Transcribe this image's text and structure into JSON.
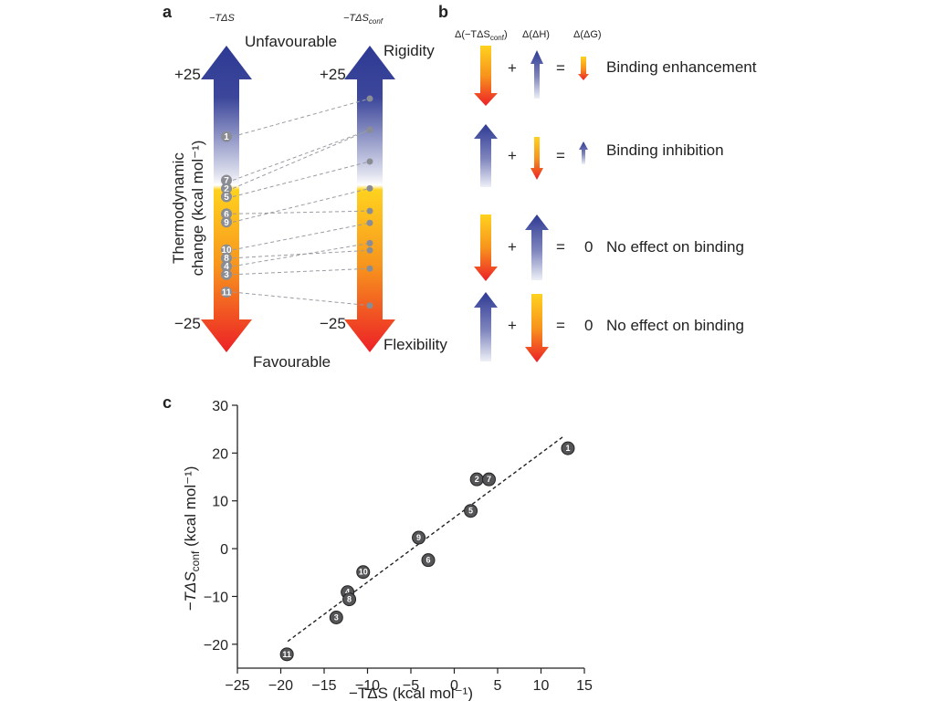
{
  "panel_a": {
    "letter": "a",
    "col1_header": "−TΔS",
    "col2_header": "−TΔS",
    "col2_header_sub": "conf",
    "unfavourable": "Unfavourable",
    "favourable": "Favourable",
    "rigidity": "Rigidity",
    "flexibility": "Flexibility",
    "plus25": "+25",
    "minus25": "−25",
    "ylabel_line1": "Thermodynamic",
    "ylabel_line2": "change (kcal mol⁻¹)",
    "markers": [
      {
        "label": "1",
        "tds": 13.1,
        "tds_conf": 21.0
      },
      {
        "label": "7",
        "tds": 4.0,
        "tds_conf": 14.5
      },
      {
        "label": "2",
        "tds": 2.6,
        "tds_conf": 14.5
      },
      {
        "label": "5",
        "tds": 1.9,
        "tds_conf": 7.9
      },
      {
        "label": "9",
        "tds": -4.1,
        "tds_conf": 2.3
      },
      {
        "label": "6",
        "tds": -3.0,
        "tds_conf": -2.4
      },
      {
        "label": "10",
        "tds": -10.5,
        "tds_conf": -4.9
      },
      {
        "label": "4",
        "tds": -12.3,
        "tds_conf": -9.1
      },
      {
        "label": "8",
        "tds": -12.1,
        "tds_conf": -10.6
      },
      {
        "label": "3",
        "tds": -13.6,
        "tds_conf": -14.4
      },
      {
        "label": "11",
        "tds": -19.3,
        "tds_conf": -22.1
      }
    ],
    "colors": {
      "blue": "#2e3a93",
      "pale": "#e8e9f2",
      "yellow": "#ffd21f",
      "orange": "#f7941d",
      "red": "#ec2027",
      "marker": "#8a8d94"
    }
  },
  "panel_b": {
    "letter": "b",
    "header1": "Δ(−TΔS",
    "header1_sub": "conf",
    "header1_end": ")",
    "header2": "Δ(ΔH)",
    "header3": "Δ(ΔG)",
    "plus": "+",
    "equals": "=",
    "rows": [
      {
        "result": "Binding enhancement",
        "zero": ""
      },
      {
        "result": "Binding inhibition",
        "zero": ""
      },
      {
        "result": "No effect on binding",
        "zero": "0"
      },
      {
        "result": "No effect on binding",
        "zero": "0"
      }
    ]
  },
  "panel_c": {
    "letter": "c"
  },
  "chart_data": {
    "type": "scatter",
    "title": "",
    "xlabel": "−TΔS (kcal mol⁻¹)",
    "ylabel": "−TΔS",
    "ylabel_sub": "conf",
    "ylabel_end": " (kcal mol⁻¹)",
    "xlim": [
      -25,
      15
    ],
    "ylim": [
      -25,
      30
    ],
    "xticks": [
      -25,
      -20,
      -15,
      -10,
      -5,
      0,
      5,
      10,
      15
    ],
    "yticks": [
      -20,
      -10,
      0,
      10,
      20,
      30
    ],
    "xtick_labels": [
      "−25",
      "−20",
      "−15",
      "−10",
      "−5",
      "0",
      "5",
      "10",
      "15"
    ],
    "ytick_labels": [
      "−20",
      "−10",
      "0",
      "10",
      "20",
      "30"
    ],
    "grid": false,
    "points": [
      {
        "label": "1",
        "x": 13.1,
        "y": 21.0
      },
      {
        "label": "2",
        "x": 2.6,
        "y": 14.5
      },
      {
        "label": "7",
        "x": 4.0,
        "y": 14.5
      },
      {
        "label": "5",
        "x": 1.9,
        "y": 7.9
      },
      {
        "label": "9",
        "x": -4.1,
        "y": 2.3
      },
      {
        "label": "6",
        "x": -3.0,
        "y": -2.4
      },
      {
        "label": "10",
        "x": -10.5,
        "y": -4.9
      },
      {
        "label": "4",
        "x": -12.3,
        "y": -9.1
      },
      {
        "label": "8",
        "x": -12.1,
        "y": -10.6
      },
      {
        "label": "3",
        "x": -13.6,
        "y": -14.4
      },
      {
        "label": "11",
        "x": -19.3,
        "y": -22.1
      }
    ],
    "trendline": {
      "style": "dashed",
      "x": [
        -19.2,
        12.6
      ],
      "y": [
        -19.4,
        23.5
      ]
    }
  }
}
